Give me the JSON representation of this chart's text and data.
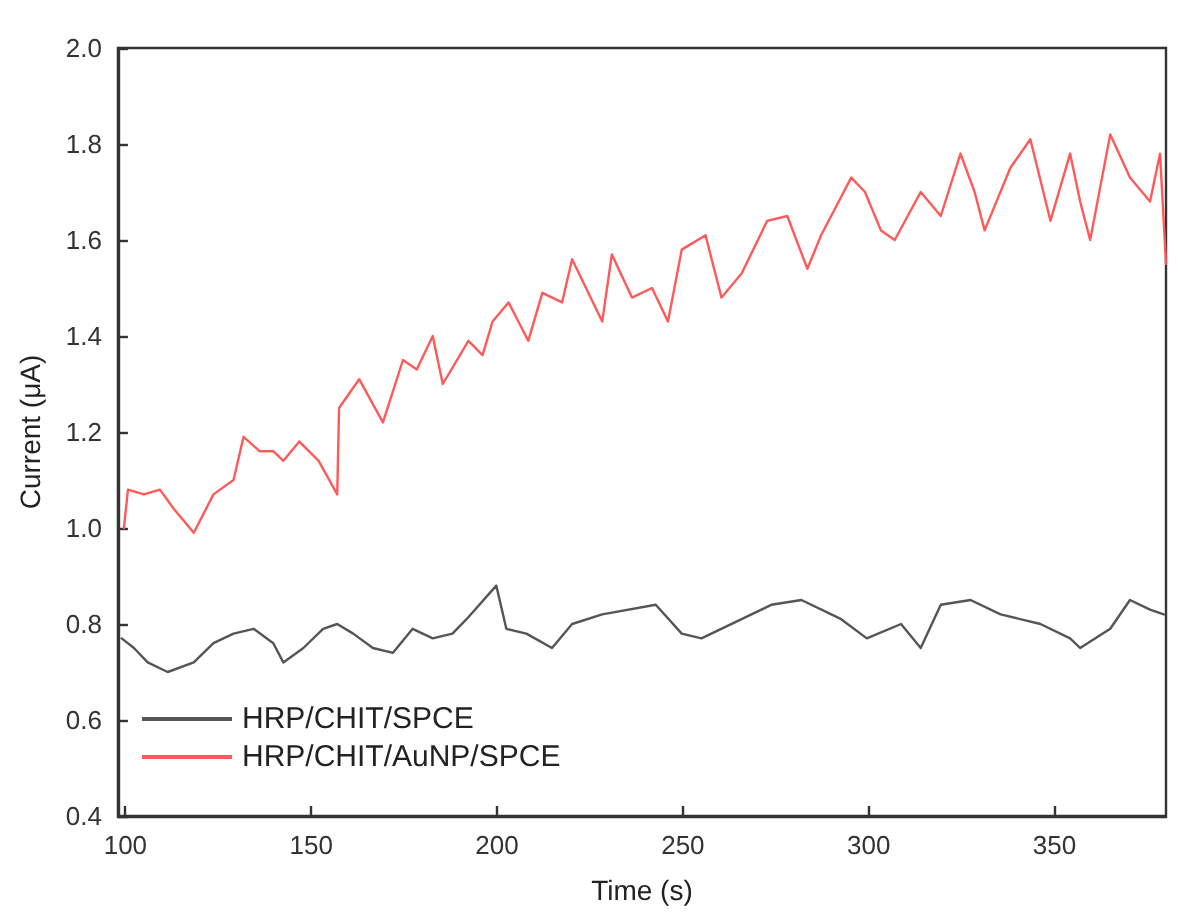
{
  "chart_data": {
    "type": "line",
    "xlabel": "Time (s)",
    "ylabel": "Current (μA)",
    "xlim": [
      98,
      380
    ],
    "xticks": [
      100,
      150,
      200,
      250,
      300,
      350
    ],
    "ylim": [
      0.4,
      2.0
    ],
    "yticks": [
      0.4,
      0.6,
      0.8,
      {
        "value": 1,
        "label": "1.0"
      },
      1.2,
      1.4,
      1.6,
      1.8,
      {
        "value": 2,
        "label": "2.0"
      }
    ],
    "grid": false,
    "legend": "bottom left",
    "marker": "none",
    "line_style": "solid",
    "series": [
      {
        "name": "HRP/CHIT/SPCE",
        "color": "#555555",
        "x": [
          99,
          102.3,
          106,
          111.4,
          118.4,
          123.7,
          129.1,
          134.5,
          139.8,
          142.5,
          147.9,
          153.2,
          157,
          161.3,
          166.6,
          172,
          177.3,
          182.7,
          188,
          191.8,
          199.8,
          202.5,
          207.9,
          214.8,
          220.2,
          228.3,
          242.7,
          249.7,
          255,
          265.8,
          273.8,
          281.9,
          292.6,
          299.5,
          308.7,
          314,
          319.4,
          327.4,
          335.5,
          346.2,
          354.2,
          356.9,
          365,
          370.3,
          375.7,
          379.4
        ],
        "values": [
          0.77,
          0.75,
          0.72,
          0.7,
          0.72,
          0.76,
          0.78,
          0.79,
          0.76,
          0.72,
          0.75,
          0.79,
          0.8,
          0.78,
          0.75,
          0.74,
          0.79,
          0.77,
          0.78,
          0.81,
          0.88,
          0.79,
          0.78,
          0.75,
          0.8,
          0.82,
          0.84,
          0.78,
          0.77,
          0.81,
          0.84,
          0.85,
          0.81,
          0.77,
          0.8,
          0.75,
          0.84,
          0.85,
          0.82,
          0.8,
          0.77,
          0.75,
          0.79,
          0.85,
          0.83,
          0.82
        ]
      },
      {
        "name": "HRP/CHIT/AuNP/SPCE",
        "color": "#ff5a5a",
        "x": [
          99.6,
          100.7,
          105,
          109.3,
          113,
          118.4,
          123.7,
          129.1,
          131.8,
          136.1,
          139.8,
          142.5,
          146.8,
          152,
          157,
          157.5,
          162.9,
          169.3,
          174.7,
          178.4,
          182.7,
          185.4,
          192.3,
          196.1,
          198.8,
          203.1,
          208.4,
          212.2,
          217.5,
          220.2,
          228.3,
          230.9,
          236.3,
          241.7,
          246,
          249.7,
          256.1,
          260.4,
          265.8,
          272.7,
          278.1,
          283.5,
          287.2,
          295.3,
          299,
          303.3,
          307,
          314,
          319.4,
          324.7,
          328.5,
          331.2,
          338.1,
          343.5,
          348.9,
          354.2,
          356.9,
          359.6,
          365,
          370.3,
          375.7,
          378.4,
          380
        ],
        "values": [
          1.0,
          1.08,
          1.07,
          1.08,
          1.04,
          0.99,
          1.07,
          1.1,
          1.19,
          1.16,
          1.16,
          1.14,
          1.18,
          1.14,
          1.07,
          1.25,
          1.31,
          1.22,
          1.35,
          1.33,
          1.4,
          1.3,
          1.39,
          1.36,
          1.43,
          1.47,
          1.39,
          1.49,
          1.47,
          1.56,
          1.43,
          1.57,
          1.48,
          1.5,
          1.43,
          1.58,
          1.61,
          1.48,
          1.53,
          1.64,
          1.65,
          1.54,
          1.61,
          1.73,
          1.7,
          1.62,
          1.6,
          1.7,
          1.65,
          1.78,
          1.7,
          1.62,
          1.75,
          1.81,
          1.64,
          1.78,
          1.68,
          1.6,
          1.82,
          1.73,
          1.68,
          1.78,
          1.55
        ]
      }
    ]
  }
}
